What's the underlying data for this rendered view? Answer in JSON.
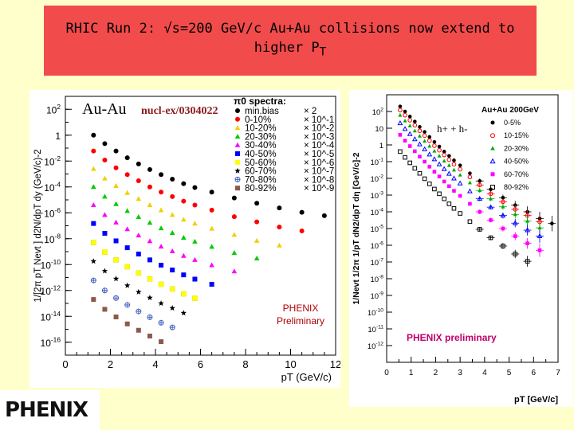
{
  "title": {
    "line1_prefix": "RHIC Run 2: ",
    "sqrt_symbol": "√",
    "line1_suffix": "s=200 GeV/c Au+Au collisions now extend to",
    "line2": "higher P",
    "line2_sub": "T"
  },
  "logo": {
    "text": "PHENIX"
  },
  "chart_data": [
    {
      "type": "scatter",
      "title": "Au-Au",
      "reference": "nucl-ex/0304022",
      "legend_title": "π0 spectra:",
      "xlabel": "pT (GeV/c)",
      "ylabel": "1/[2π pT Nevt ] d2N/dpT dy (GeV/c)-2",
      "xlim": [
        0,
        12
      ],
      "ylim": [
        1e-17,
        1000.0
      ],
      "log_y": true,
      "x_ticks": [
        "0",
        "2",
        "4",
        "6",
        "8",
        "10",
        "12"
      ],
      "y_ticks": [
        "10^2",
        "1",
        "10^-2",
        "10^-4",
        "10^-6",
        "10^-8",
        "10^-10",
        "10^-12",
        "10^-14",
        "10^-16"
      ],
      "annotation": [
        "PHENIX",
        "Preliminary"
      ],
      "legend_placement": "top-right",
      "x": [
        1.25,
        1.75,
        2.25,
        2.75,
        3.25,
        3.75,
        4.25,
        4.75,
        5.25,
        5.75,
        6.5,
        7.5,
        8.5,
        9.5,
        10.5,
        11.5
      ],
      "series": [
        {
          "name": "min.bias",
          "scale": "× 2",
          "color": "#000000",
          "marker": "circle",
          "values": [
            1.0,
            0.22,
            0.06,
            0.018,
            0.006,
            0.0022,
            0.0009,
            0.0004,
            0.00018,
            9e-05,
            4e-05,
            1.4e-05,
            5.5e-06,
            2.4e-06,
            1.1e-06,
            6e-07
          ]
        },
        {
          "name": "0-10%",
          "scale": "× 10^-1",
          "color": "#ff0000",
          "marker": "circle",
          "values": [
            0.06,
            0.012,
            0.003,
            0.0009,
            0.0003,
            0.0001,
            4e-05,
            1.8e-05,
            8e-06,
            4e-06,
            1.6e-06,
            5e-07,
            2e-07,
            8e-08,
            4e-08
          ]
        },
        {
          "name": "10-20%",
          "scale": "× 10^-2",
          "color": "#f0d000",
          "marker": "triangle",
          "values": [
            0.0025,
            0.00045,
            0.00012,
            3.5e-05,
            1.2e-05,
            4e-06,
            1.6e-06,
            7e-07,
            3e-07,
            1.5e-07,
            6e-08,
            2e-08,
            7e-09,
            3e-09
          ]
        },
        {
          "name": "20-30%",
          "scale": "× 10^-3",
          "color": "#00cc00",
          "marker": "triangle",
          "values": [
            0.0001,
            1.8e-05,
            4.8e-06,
            1.4e-06,
            4.8e-07,
            1.7e-07,
            6.5e-08,
            2.8e-08,
            1.2e-08,
            6e-09,
            2.4e-09,
            8e-10,
            3e-10
          ]
        },
        {
          "name": "30-40%",
          "scale": "× 10^-4",
          "color": "#ff00ff",
          "marker": "triangle",
          "values": [
            4e-06,
            7e-07,
            1.8e-07,
            5.5e-08,
            1.8e-08,
            6.5e-09,
            2.5e-09,
            1.1e-09,
            4.8e-10,
            2.3e-10,
            9e-11,
            3e-11
          ]
        },
        {
          "name": "40-50%",
          "scale": "× 10^-5",
          "color": "#0000ff",
          "marker": "square",
          "values": [
            1.5e-07,
            2.6e-08,
            6.8e-09,
            2e-09,
            6.5e-10,
            2.3e-10,
            9e-11,
            3.8e-11,
            1.6e-11,
            7.5e-12,
            3e-12
          ]
        },
        {
          "name": "50-60%",
          "scale": "× 10^-6",
          "color": "#ffff00",
          "marker": "square",
          "values": [
            5e-09,
            9e-10,
            2.3e-10,
            6.8e-11,
            2.2e-11,
            7.8e-12,
            3e-12,
            1.3e-12,
            5.5e-13,
            2.5e-13
          ]
        },
        {
          "name": "60-70%",
          "scale": "× 10^-7",
          "color": "#000000",
          "marker": "star",
          "values": [
            1.8e-10,
            3.2e-11,
            8e-12,
            2.4e-12,
            7.6e-13,
            2.7e-13,
            1e-13,
            4.3e-14,
            1.8e-14
          ]
        },
        {
          "name": "70-80%",
          "scale": "× 10^-8",
          "color": "#4060c0",
          "marker": "cross-circle",
          "values": [
            6e-12,
            1e-12,
            2.6e-13,
            7.6e-14,
            2.4e-14,
            8.5e-15,
            3.2e-15,
            1.4e-15
          ]
        },
        {
          "name": "80-92%",
          "scale": "× 10^-9",
          "color": "#8b5a4a",
          "marker": "square",
          "values": [
            2e-13,
            3.5e-14,
            9e-15,
            2.6e-15,
            8.4e-16,
            3e-16,
            1.1e-16
          ]
        }
      ]
    },
    {
      "type": "scatter",
      "title": "h+ + h-",
      "legend_title": "Au+Au 200GeV",
      "xlabel": "pT [GeV/c]",
      "ylabel": "1/Nevt 1/2π 1/pT dN2/dpT dη [GeV/c]-2",
      "xlim": [
        0,
        7
      ],
      "ylim": [
        1e-13,
        1000.0
      ],
      "log_y": true,
      "x_ticks": [
        "0",
        "1",
        "2",
        "3",
        "4",
        "5",
        "6",
        "7"
      ],
      "y_ticks": [
        "10^2",
        "10",
        "1",
        "10^-1",
        "10^-2",
        "10^-3",
        "10^-4",
        "10^-5",
        "10^-6",
        "10^-7",
        "10^-8",
        "10^-9",
        "10^-10",
        "10^-11",
        "10^-12"
      ],
      "annotation": [
        "PHENIX preliminary"
      ],
      "legend_placement": "top-right",
      "x": [
        0.55,
        0.75,
        0.95,
        1.15,
        1.35,
        1.55,
        1.75,
        1.95,
        2.15,
        2.35,
        2.55,
        2.75,
        3.0,
        3.4,
        3.8,
        4.25,
        4.75,
        5.25,
        5.75,
        6.25,
        6.75
      ],
      "series": [
        {
          "name": "0-5%",
          "color": "#000000",
          "marker": "circle",
          "values": [
            200,
            100,
            50,
            25,
            12,
            6,
            3,
            1.5,
            0.8,
            0.4,
            0.22,
            0.12,
            0.06,
            0.02,
            0.007,
            0.0022,
            0.0007,
            0.00025,
            0.0001,
            4e-05,
            2e-05
          ]
        },
        {
          "name": "10-15%",
          "color": "#ff0000",
          "marker": "open-circle",
          "values": [
            120,
            60,
            30,
            15,
            7,
            3.6,
            1.8,
            0.9,
            0.48,
            0.25,
            0.13,
            0.07,
            0.035,
            0.012,
            0.004,
            0.0012,
            0.0004,
            0.00014,
            6e-05,
            2.5e-05
          ]
        },
        {
          "name": "20-30%",
          "color": "#00aa00",
          "marker": "triangle",
          "values": [
            60,
            28,
            14,
            7,
            3.4,
            1.7,
            0.85,
            0.43,
            0.22,
            0.11,
            0.06,
            0.032,
            0.016,
            0.0055,
            0.0019,
            0.0006,
            0.0002,
            7e-05,
            2.8e-05,
            1.1e-05
          ]
        },
        {
          "name": "40-50%",
          "color": "#0000ff",
          "marker": "open-triangle",
          "values": [
            20,
            9,
            4.5,
            2.2,
            1.1,
            0.55,
            0.27,
            0.14,
            0.07,
            0.036,
            0.019,
            0.01,
            0.005,
            0.0017,
            0.0006,
            0.00019,
            6e-05,
            2.1e-05,
            8e-06,
            3.5e-06
          ]
        },
        {
          "name": "60-70%",
          "color": "#ff00ff",
          "marker": "square",
          "values": [
            4,
            1.8,
            0.85,
            0.42,
            0.2,
            0.1,
            0.05,
            0.025,
            0.013,
            0.0065,
            0.0034,
            0.0018,
            0.0009,
            0.0003,
            0.0001,
            3.2e-05,
            1e-05,
            3.5e-06,
            1.3e-06,
            5e-07
          ]
        },
        {
          "name": "80-92%",
          "color": "#000000",
          "marker": "open-square",
          "values": [
            0.4,
            0.18,
            0.085,
            0.04,
            0.02,
            0.0095,
            0.0047,
            0.0023,
            0.0012,
            0.0006,
            0.0003,
            0.00016,
            8e-05,
            2.6e-05,
            9e-06,
            2.8e-06,
            9e-07,
            3e-07,
            1.1e-07
          ]
        }
      ]
    }
  ]
}
